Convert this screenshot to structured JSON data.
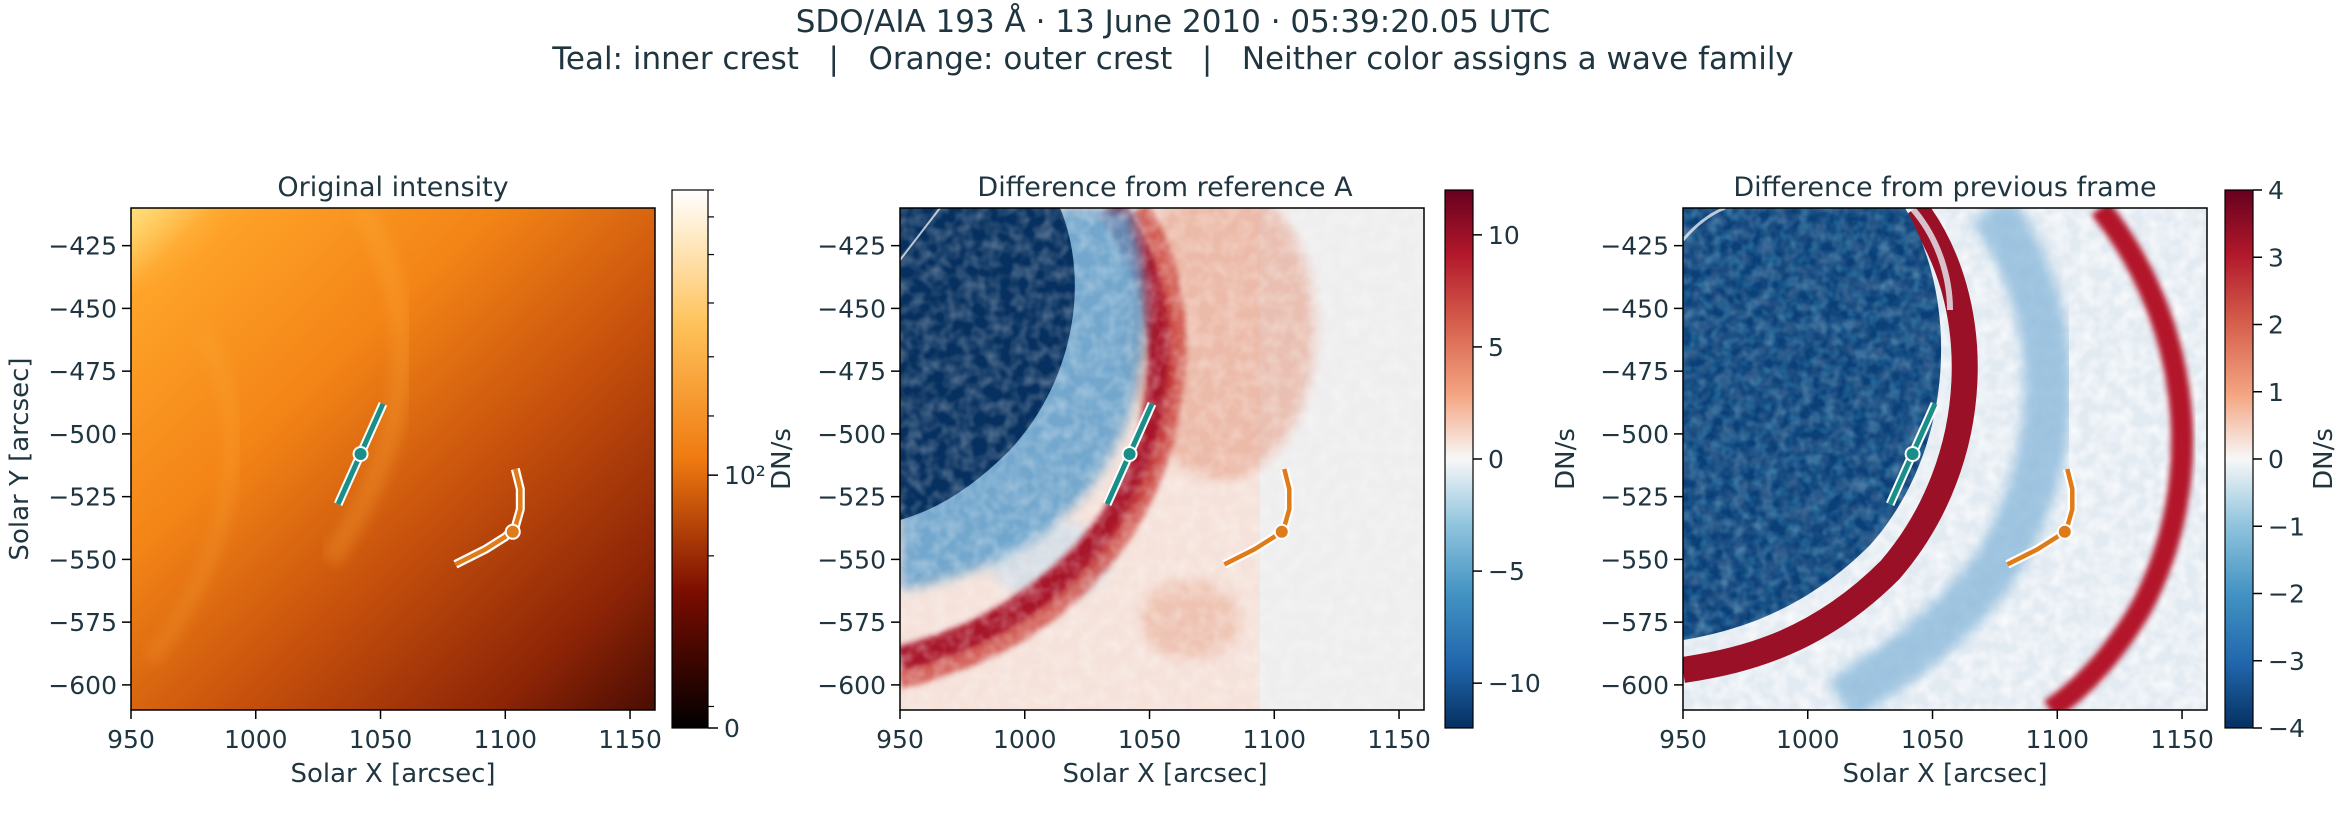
{
  "header": {
    "title": "SDO/AIA 193 Å · 13 June 2010 · 05:39:20.05 UTC",
    "legend": {
      "teal": "Teal: inner crest",
      "sep1": "   |   ",
      "orange": "Orange: outer crest",
      "sep2": "   |   ",
      "note": "Neither color assigns a wave family"
    }
  },
  "colors": {
    "teal": "#1a8f8a",
    "orange": "#e07b1a",
    "text": "#1f3540"
  },
  "chart_data": [
    {
      "type": "heatmap",
      "title": "Original intensity",
      "xlabel": "Solar X [arcsec]",
      "ylabel": "Solar Y [arcsec]",
      "xlim": [
        950,
        1160
      ],
      "ylim": [
        -610,
        -410
      ],
      "xticks": [
        950,
        1000,
        1050,
        1100,
        1150
      ],
      "xtick_labels": [
        "950",
        "1000",
        "1050",
        "1100",
        "1150"
      ],
      "yticks": [
        -425,
        -450,
        -475,
        -500,
        -525,
        -550,
        -575,
        -600
      ],
      "ytick_labels": [
        "−425",
        "−450",
        "−475",
        "−500",
        "−525",
        "−550",
        "−575",
        "−600"
      ],
      "colormap": "afmhot",
      "colorbar": {
        "label": "DN/s",
        "scale": "log",
        "ticks": [
          {
            "value": 0,
            "label": "0"
          },
          {
            "value": 0.47,
            "label": "10²"
          }
        ],
        "minor_ticks": [
          0.04,
          0.32,
          0.58,
          0.69,
          0.79,
          0.88,
          0.95,
          1.0
        ]
      }
    },
    {
      "type": "heatmap",
      "title": "Difference from reference A",
      "xlabel": "Solar X [arcsec]",
      "ylabel": "",
      "xlim": [
        950,
        1160
      ],
      "ylim": [
        -610,
        -410
      ],
      "xticks": [
        950,
        1000,
        1050,
        1100,
        1150
      ],
      "xtick_labels": [
        "950",
        "1000",
        "1050",
        "1100",
        "1150"
      ],
      "yticks": [
        -425,
        -450,
        -475,
        -500,
        -525,
        -550,
        -575,
        -600
      ],
      "ytick_labels": [
        "−425",
        "−450",
        "−475",
        "−500",
        "−525",
        "−550",
        "−575",
        "−600"
      ],
      "colormap": "RdBu_r",
      "colorbar": {
        "label": "DN/s",
        "scale": "linear",
        "vmin": -12,
        "vmax": 12,
        "ticks": [
          10,
          5,
          0,
          -5,
          -10
        ],
        "tick_labels": [
          "10",
          "5",
          "0",
          "−5",
          "−10"
        ]
      }
    },
    {
      "type": "heatmap",
      "title": "Difference from previous frame",
      "xlabel": "Solar X [arcsec]",
      "ylabel": "",
      "xlim": [
        950,
        1160
      ],
      "ylim": [
        -610,
        -410
      ],
      "xticks": [
        950,
        1000,
        1050,
        1100,
        1150
      ],
      "xtick_labels": [
        "950",
        "1000",
        "1050",
        "1100",
        "1150"
      ],
      "yticks": [
        -425,
        -450,
        -475,
        -500,
        -525,
        -550,
        -575,
        -600
      ],
      "ytick_labels": [
        "−425",
        "−450",
        "−475",
        "−500",
        "−525",
        "−550",
        "−575",
        "−600"
      ],
      "colormap": "RdBu_r",
      "colorbar": {
        "label": "DN/s",
        "scale": "linear",
        "vmin": -4,
        "vmax": 4,
        "ticks": [
          4,
          3,
          2,
          1,
          0,
          -1,
          -2,
          -3,
          -4
        ],
        "tick_labels": [
          "4",
          "3",
          "2",
          "1",
          "0",
          "−1",
          "−2",
          "−3",
          "−4"
        ]
      }
    }
  ],
  "overlays": {
    "inner_crest": {
      "color": "teal",
      "line": [
        [
          1033,
          -528
        ],
        [
          1051,
          -488
        ]
      ],
      "marker": [
        1042,
        -508
      ]
    },
    "outer_crest": {
      "color": "orange",
      "arc": [
        [
          1080,
          -552
        ],
        [
          1092,
          -546
        ],
        [
          1100,
          -541
        ],
        [
          1104,
          -537
        ],
        [
          1106,
          -530
        ],
        [
          1106,
          -522
        ],
        [
          1104,
          -514
        ]
      ],
      "marker": [
        1103,
        -539
      ]
    }
  }
}
